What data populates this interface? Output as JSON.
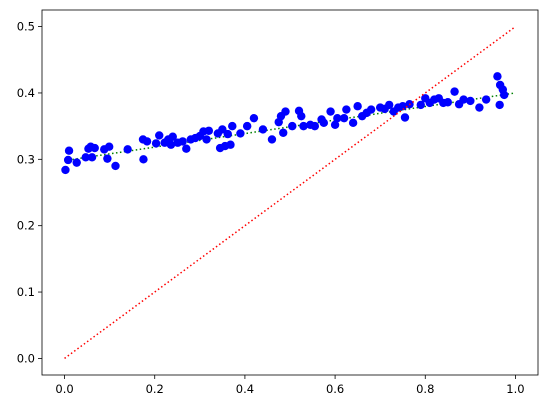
{
  "chart_data": {
    "type": "scatter",
    "title": "",
    "xlabel": "",
    "ylabel": "",
    "xlim": [
      -0.05,
      1.05
    ],
    "ylim": [
      -0.025,
      0.525
    ],
    "grid": false,
    "xticks": [
      0.0,
      0.2,
      0.4,
      0.6,
      0.8,
      1.0
    ],
    "xtick_labels": [
      "0.0",
      "0.2",
      "0.4",
      "0.6",
      "0.8",
      "1.0"
    ],
    "yticks": [
      0.0,
      0.1,
      0.2,
      0.3,
      0.4,
      0.5
    ],
    "ytick_labels": [
      "0.0",
      "0.1",
      "0.2",
      "0.3",
      "0.4",
      "0.5"
    ],
    "colors": {
      "points": "#0000ff",
      "identity_line": "#ff0000",
      "fit_line": "#008000"
    },
    "series": [
      {
        "kind": "points",
        "points": [
          [
            0.002,
            0.284
          ],
          [
            0.008,
            0.299
          ],
          [
            0.01,
            0.313
          ],
          [
            0.027,
            0.295
          ],
          [
            0.047,
            0.303
          ],
          [
            0.053,
            0.316
          ],
          [
            0.058,
            0.319
          ],
          [
            0.061,
            0.303
          ],
          [
            0.067,
            0.317
          ],
          [
            0.088,
            0.315
          ],
          [
            0.095,
            0.301
          ],
          [
            0.099,
            0.319
          ],
          [
            0.113,
            0.29
          ],
          [
            0.14,
            0.315
          ],
          [
            0.174,
            0.33
          ],
          [
            0.175,
            0.3
          ],
          [
            0.183,
            0.327
          ],
          [
            0.203,
            0.324
          ],
          [
            0.21,
            0.336
          ],
          [
            0.222,
            0.325
          ],
          [
            0.23,
            0.33
          ],
          [
            0.236,
            0.322
          ],
          [
            0.24,
            0.334
          ],
          [
            0.251,
            0.325
          ],
          [
            0.262,
            0.327
          ],
          [
            0.27,
            0.316
          ],
          [
            0.28,
            0.33
          ],
          [
            0.29,
            0.332
          ],
          [
            0.3,
            0.335
          ],
          [
            0.308,
            0.342
          ],
          [
            0.315,
            0.33
          ],
          [
            0.32,
            0.343
          ],
          [
            0.34,
            0.339
          ],
          [
            0.345,
            0.317
          ],
          [
            0.35,
            0.345
          ],
          [
            0.356,
            0.32
          ],
          [
            0.362,
            0.338
          ],
          [
            0.368,
            0.322
          ],
          [
            0.372,
            0.35
          ],
          [
            0.39,
            0.339
          ],
          [
            0.405,
            0.35
          ],
          [
            0.42,
            0.362
          ],
          [
            0.44,
            0.345
          ],
          [
            0.46,
            0.33
          ],
          [
            0.475,
            0.356
          ],
          [
            0.48,
            0.365
          ],
          [
            0.485,
            0.34
          ],
          [
            0.49,
            0.372
          ],
          [
            0.505,
            0.35
          ],
          [
            0.52,
            0.373
          ],
          [
            0.525,
            0.365
          ],
          [
            0.53,
            0.35
          ],
          [
            0.545,
            0.352
          ],
          [
            0.555,
            0.35
          ],
          [
            0.57,
            0.36
          ],
          [
            0.575,
            0.355
          ],
          [
            0.59,
            0.372
          ],
          [
            0.6,
            0.352
          ],
          [
            0.605,
            0.362
          ],
          [
            0.62,
            0.362
          ],
          [
            0.625,
            0.375
          ],
          [
            0.64,
            0.355
          ],
          [
            0.65,
            0.38
          ],
          [
            0.66,
            0.365
          ],
          [
            0.67,
            0.37
          ],
          [
            0.68,
            0.375
          ],
          [
            0.7,
            0.378
          ],
          [
            0.71,
            0.376
          ],
          [
            0.72,
            0.382
          ],
          [
            0.73,
            0.372
          ],
          [
            0.74,
            0.378
          ],
          [
            0.75,
            0.38
          ],
          [
            0.755,
            0.363
          ],
          [
            0.765,
            0.383
          ],
          [
            0.79,
            0.382
          ],
          [
            0.8,
            0.392
          ],
          [
            0.81,
            0.385
          ],
          [
            0.82,
            0.39
          ],
          [
            0.83,
            0.392
          ],
          [
            0.84,
            0.385
          ],
          [
            0.85,
            0.386
          ],
          [
            0.865,
            0.402
          ],
          [
            0.875,
            0.383
          ],
          [
            0.885,
            0.39
          ],
          [
            0.9,
            0.388
          ],
          [
            0.92,
            0.378
          ],
          [
            0.935,
            0.39
          ],
          [
            0.96,
            0.425
          ],
          [
            0.965,
            0.382
          ],
          [
            0.966,
            0.412
          ],
          [
            0.972,
            0.405
          ],
          [
            0.975,
            0.397
          ]
        ]
      },
      {
        "kind": "line",
        "style": "dotted",
        "points": [
          [
            0.0,
            0.0
          ],
          [
            1.0,
            0.5
          ]
        ]
      },
      {
        "kind": "line",
        "style": "dotted",
        "points": [
          [
            0.0,
            0.298
          ],
          [
            1.0,
            0.4
          ]
        ]
      }
    ]
  }
}
